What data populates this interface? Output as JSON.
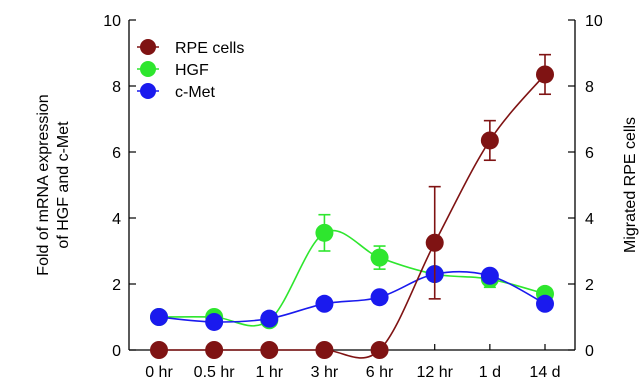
{
  "chart_data": {
    "type": "line",
    "categories": [
      "0 hr",
      "0.5 hr",
      "1 hr",
      "3 hr",
      "6 hr",
      "12 hr",
      "1 d",
      "14 d"
    ],
    "ylabel_left": "Fold of mRNA expression\nof HGF and c-Met",
    "ylabel_right": "Migrated RPE cells",
    "ylim_left": [
      0,
      10
    ],
    "ylim_right": [
      0,
      10
    ],
    "yticks_left": [
      "0",
      "2",
      "4",
      "6",
      "8",
      "10"
    ],
    "yticks_right": [
      "0",
      "2",
      "4",
      "6",
      "8",
      "10"
    ],
    "grid": false,
    "legend_position": "top-left",
    "series": [
      {
        "name": "RPE cells",
        "color": "#7f1313",
        "axis": "right",
        "values": [
          0,
          0,
          0,
          0,
          0,
          3.25,
          6.35,
          8.35
        ],
        "errors": [
          0,
          0,
          0,
          0,
          0,
          1.7,
          0.6,
          0.6
        ]
      },
      {
        "name": "HGF",
        "color": "#2ee62e",
        "axis": "left",
        "values": [
          1.0,
          1.0,
          0.9,
          3.55,
          2.8,
          2.3,
          2.15,
          1.7
        ],
        "errors": [
          0,
          0,
          0,
          0.55,
          0.35,
          0,
          0.25,
          0
        ]
      },
      {
        "name": "c-Met",
        "color": "#1a1aee",
        "axis": "left",
        "values": [
          1.0,
          0.85,
          0.95,
          1.4,
          1.6,
          2.3,
          2.25,
          1.4
        ],
        "errors": [
          0,
          0,
          0,
          0,
          0,
          0,
          0,
          0
        ]
      }
    ]
  }
}
